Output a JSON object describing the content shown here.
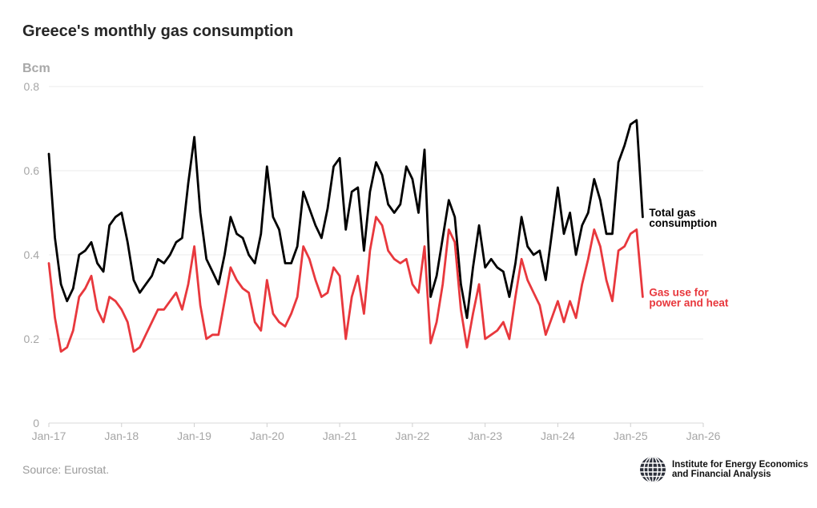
{
  "chart_data": {
    "type": "line",
    "title": "Greece's monthly gas consumption",
    "ylabel": "Bcm",
    "xlabel": "",
    "ylim": [
      0,
      0.8
    ],
    "y_ticks": [
      "0",
      "0.2",
      "0.4",
      "0.6",
      "0.8"
    ],
    "y_tick_values": [
      0,
      0.2,
      0.4,
      0.6,
      0.8
    ],
    "x_ticks": [
      "Jan-17",
      "Jan-18",
      "Jan-19",
      "Jan-20",
      "Jan-21",
      "Jan-22",
      "Jan-23",
      "Jan-24",
      "Jan-25",
      "Jan-26"
    ],
    "x_start": "Jan-17",
    "x_range_months": [
      0,
      108
    ],
    "grid": true,
    "series": [
      {
        "name": "Total gas consumption",
        "label_lines": [
          "Total gas",
          "consumption"
        ],
        "color": "#000000",
        "values": [
          0.64,
          0.44,
          0.33,
          0.29,
          0.32,
          0.4,
          0.41,
          0.43,
          0.38,
          0.36,
          0.47,
          0.49,
          0.5,
          0.43,
          0.34,
          0.31,
          0.33,
          0.35,
          0.39,
          0.38,
          0.4,
          0.43,
          0.44,
          0.57,
          0.68,
          0.5,
          0.39,
          0.36,
          0.33,
          0.4,
          0.49,
          0.45,
          0.44,
          0.4,
          0.38,
          0.45,
          0.61,
          0.49,
          0.46,
          0.38,
          0.38,
          0.42,
          0.55,
          0.51,
          0.47,
          0.44,
          0.51,
          0.61,
          0.63,
          0.46,
          0.55,
          0.56,
          0.41,
          0.55,
          0.62,
          0.59,
          0.52,
          0.5,
          0.52,
          0.61,
          0.58,
          0.5,
          0.65,
          0.3,
          0.35,
          0.44,
          0.53,
          0.49,
          0.33,
          0.25,
          0.37,
          0.47,
          0.37,
          0.39,
          0.37,
          0.36,
          0.3,
          0.38,
          0.49,
          0.42,
          0.4,
          0.41,
          0.34,
          0.45,
          0.56,
          0.45,
          0.5,
          0.4,
          0.47,
          0.5,
          0.58,
          0.53,
          0.45,
          0.45,
          0.62,
          0.66,
          0.71,
          0.72,
          0.49
        ]
      },
      {
        "name": "Gas use for power and heat",
        "label_lines": [
          "Gas use for",
          "power and heat"
        ],
        "color": "#e8383d",
        "values": [
          0.38,
          0.25,
          0.17,
          0.18,
          0.22,
          0.3,
          0.32,
          0.35,
          0.27,
          0.24,
          0.3,
          0.29,
          0.27,
          0.24,
          0.17,
          0.18,
          0.21,
          0.24,
          0.27,
          0.27,
          0.29,
          0.31,
          0.27,
          0.33,
          0.42,
          0.28,
          0.2,
          0.21,
          0.21,
          0.29,
          0.37,
          0.34,
          0.32,
          0.31,
          0.24,
          0.22,
          0.34,
          0.26,
          0.24,
          0.23,
          0.26,
          0.3,
          0.42,
          0.39,
          0.34,
          0.3,
          0.31,
          0.37,
          0.35,
          0.2,
          0.3,
          0.35,
          0.26,
          0.41,
          0.49,
          0.47,
          0.41,
          0.39,
          0.38,
          0.39,
          0.33,
          0.31,
          0.42,
          0.19,
          0.24,
          0.33,
          0.46,
          0.43,
          0.27,
          0.18,
          0.26,
          0.33,
          0.2,
          0.21,
          0.22,
          0.24,
          0.2,
          0.3,
          0.39,
          0.34,
          0.31,
          0.28,
          0.21,
          0.25,
          0.29,
          0.24,
          0.29,
          0.25,
          0.33,
          0.39,
          0.46,
          0.42,
          0.34,
          0.29,
          0.41,
          0.42,
          0.45,
          0.46,
          0.3
        ]
      }
    ]
  },
  "footer": {
    "source": "Source: Eurostat.",
    "org_line1": "Institute for Energy Economics",
    "org_line2": "and Financial Analysis",
    "logo_icon": "globe-logo-icon"
  },
  "colors": {
    "grid": "#ebebeb",
    "tick_text": "#a6a6a6",
    "title": "#262626"
  }
}
